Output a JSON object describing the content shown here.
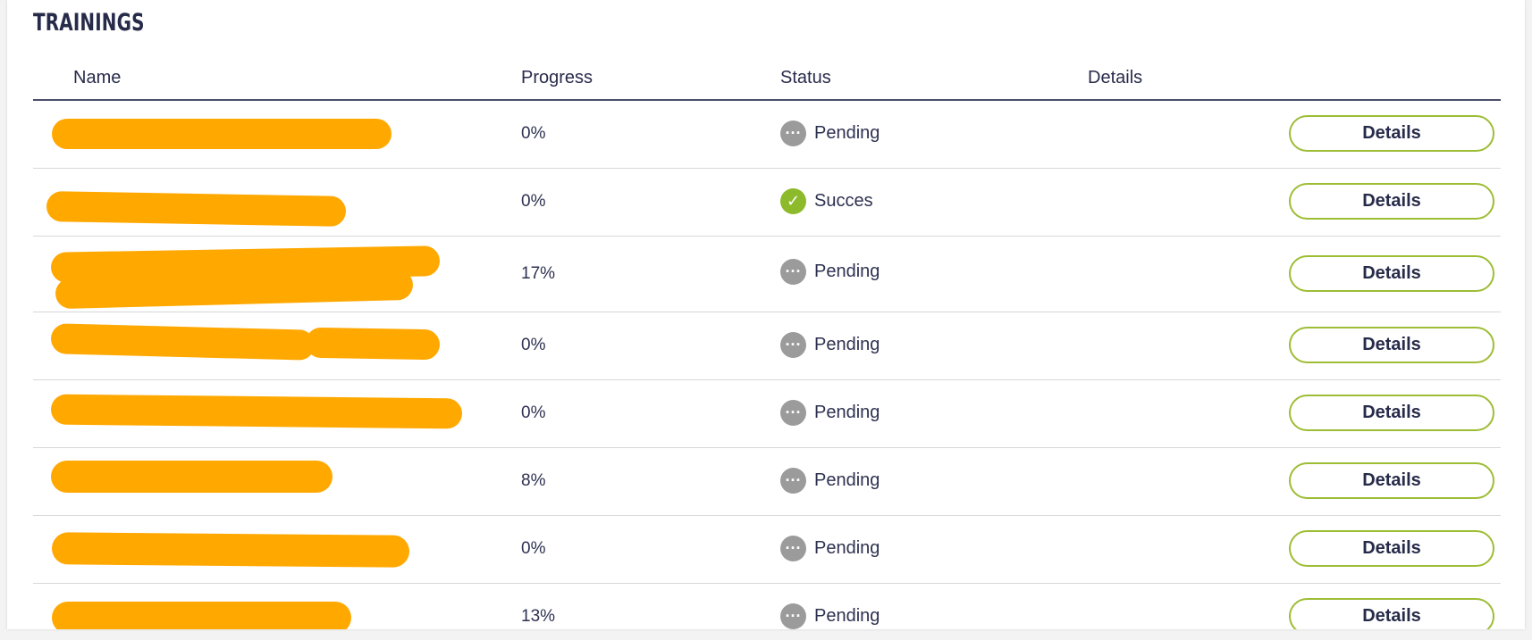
{
  "page": {
    "title": "TRAININGS"
  },
  "table": {
    "columns": {
      "name": "Name",
      "progress": "Progress",
      "status": "Status",
      "details": "Details"
    },
    "rows": [
      {
        "progress": "0%",
        "status": "Pending",
        "status_icon": "more-dots-icon",
        "button": "Details"
      },
      {
        "progress": "0%",
        "status": "Succes",
        "status_icon": "check-icon",
        "button": "Details"
      },
      {
        "progress": "17%",
        "status": "Pending",
        "status_icon": "more-dots-icon",
        "button": "Details"
      },
      {
        "progress": "0%",
        "status": "Pending",
        "status_icon": "more-dots-icon",
        "button": "Details"
      },
      {
        "progress": "0%",
        "status": "Pending",
        "status_icon": "more-dots-icon",
        "button": "Details"
      },
      {
        "progress": "8%",
        "status": "Pending",
        "status_icon": "more-dots-icon",
        "button": "Details"
      },
      {
        "progress": "0%",
        "status": "Pending",
        "status_icon": "more-dots-icon",
        "button": "Details"
      },
      {
        "progress": "13%",
        "status": "Pending",
        "status_icon": "more-dots-icon",
        "button": "Details"
      }
    ]
  },
  "colors": {
    "accent": "#9dbd35",
    "redaction": "#ffa800",
    "pending": "#9b9b9b",
    "success": "#8cba2b"
  }
}
